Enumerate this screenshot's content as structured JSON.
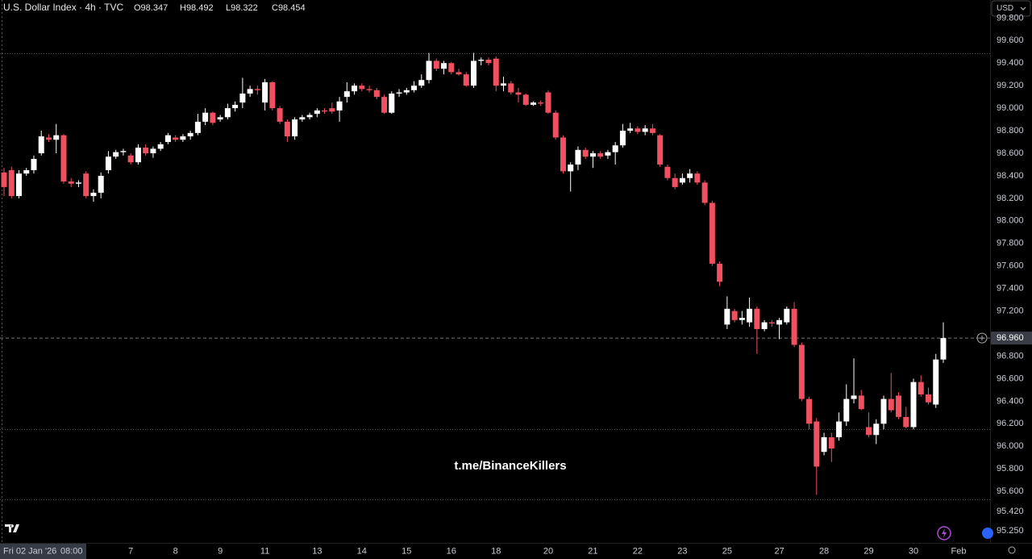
{
  "chart_data": {
    "type": "candlestick",
    "title": "U.S. Dollar Index · 4h · TVC",
    "ohlc_legend": [
      "O98.347",
      "H98.492",
      "L98.322",
      "C98.454"
    ],
    "currency": "USD",
    "watermark": "t.me/BinanceKillers",
    "crosshair_date": "Fri 02 Jan '26",
    "crosshair_time": "08:00",
    "x_axis_end_label": "Feb",
    "up_color": "#ffffff",
    "down_color": "#f0505f",
    "ylim": [
      95.15,
      99.96
    ],
    "yticks": [
      {
        "value": 99.8,
        "label": "99.800"
      },
      {
        "value": 99.6,
        "label": "99.600"
      },
      {
        "value": 99.4,
        "label": "99.400"
      },
      {
        "value": 99.2,
        "label": "99.200"
      },
      {
        "value": 99.0,
        "label": "99.000"
      },
      {
        "value": 98.8,
        "label": "98.800"
      },
      {
        "value": 98.6,
        "label": "98.600"
      },
      {
        "value": 98.4,
        "label": "98.400"
      },
      {
        "value": 98.2,
        "label": "98.200"
      },
      {
        "value": 98.0,
        "label": "98.000"
      },
      {
        "value": 97.8,
        "label": "97.800"
      },
      {
        "value": 97.6,
        "label": "97.600"
      },
      {
        "value": 97.4,
        "label": "97.400"
      },
      {
        "value": 97.2,
        "label": "97.200"
      },
      {
        "value": 96.8,
        "label": "96.800"
      },
      {
        "value": 96.6,
        "label": "96.600"
      },
      {
        "value": 96.4,
        "label": "96.400"
      },
      {
        "value": 96.2,
        "label": "96.200"
      },
      {
        "value": 96.0,
        "label": "96.000"
      },
      {
        "value": 95.8,
        "label": "95.800"
      },
      {
        "value": 95.6,
        "label": "95.600"
      },
      {
        "value": 95.42,
        "label": "95.420"
      },
      {
        "value": 95.25,
        "label": "95.250"
      }
    ],
    "last_price": {
      "value": 96.96,
      "label": "96.960"
    },
    "levels": [
      99.49,
      96.15,
      95.53
    ],
    "categories": [
      null,
      null,
      null,
      null,
      null,
      null,
      null,
      null,
      null,
      null,
      null,
      null,
      null,
      null,
      null,
      null,
      null,
      "7",
      null,
      null,
      null,
      null,
      null,
      "8",
      null,
      null,
      null,
      null,
      null,
      "9",
      null,
      null,
      null,
      null,
      null,
      "11",
      null,
      null,
      null,
      null,
      null,
      null,
      "13",
      null,
      null,
      null,
      null,
      null,
      "14",
      null,
      null,
      null,
      null,
      null,
      "15",
      null,
      null,
      null,
      null,
      null,
      "16",
      null,
      null,
      null,
      null,
      null,
      "18",
      null,
      null,
      null,
      null,
      null,
      null,
      "20",
      null,
      null,
      null,
      null,
      null,
      "21",
      null,
      null,
      null,
      null,
      null,
      "22",
      null,
      null,
      null,
      null,
      null,
      "23",
      null,
      null,
      null,
      null,
      null,
      "25",
      null,
      null,
      null,
      null,
      null,
      null,
      "27",
      null,
      null,
      null,
      null,
      null,
      "28",
      null,
      null,
      null,
      null,
      null,
      "29",
      null,
      null,
      null,
      null,
      null,
      "30",
      null,
      null,
      null,
      null
    ],
    "open": [
      98.43,
      98.45,
      98.22,
      98.42,
      98.45,
      98.6,
      98.74,
      98.72,
      98.76,
      98.35,
      98.33,
      98.42,
      98.22,
      98.25,
      98.45,
      98.57,
      98.61,
      98.58,
      98.52,
      98.65,
      98.6,
      98.64,
      98.7,
      98.74,
      98.72,
      98.75,
      98.78,
      98.88,
      98.96,
      98.9,
      98.92,
      99.0,
      99.05,
      99.13,
      99.17,
      99.05,
      99.23,
      99.0,
      98.88,
      98.75,
      98.9,
      98.92,
      98.95,
      98.98,
      99.0,
      98.98,
      99.1,
      99.15,
      99.2,
      99.17,
      99.16,
      99.1,
      98.96,
      99.13,
      99.14,
      99.16,
      99.2,
      99.25,
      99.42,
      99.35,
      99.4,
      99.32,
      99.3,
      99.2,
      99.42,
      99.43,
      99.44,
      99.2,
      99.22,
      99.14,
      99.12,
      99.03,
      99.05,
      99.14,
      98.96,
      98.74,
      98.44,
      98.5,
      98.63,
      98.57,
      98.6,
      98.58,
      98.61,
      98.67,
      98.8,
      98.82,
      98.79,
      98.82,
      98.76,
      98.48,
      98.38,
      98.34,
      98.38,
      98.42,
      98.34,
      98.16,
      97.62,
      97.08,
      97.2,
      97.12,
      97.1,
      97.22,
      97.04,
      97.1,
      97.08,
      97.1,
      97.22,
      96.9,
      96.42,
      96.22,
      95.95,
      96.08,
      96.08,
      96.22,
      96.42,
      96.45,
      96.17,
      96.1,
      96.2,
      96.42,
      96.45,
      96.26,
      96.17,
      96.57,
      96.46,
      96.37,
      96.77
    ],
    "high": [
      98.47,
      98.48,
      98.45,
      98.47,
      98.58,
      98.8,
      98.77,
      98.86,
      98.77,
      98.38,
      98.36,
      98.44,
      98.28,
      98.43,
      98.62,
      98.63,
      98.64,
      98.6,
      98.68,
      98.68,
      98.66,
      98.7,
      98.78,
      98.76,
      98.77,
      98.8,
      98.95,
      99.0,
      98.97,
      98.94,
      99.04,
      99.06,
      99.27,
      99.2,
      99.2,
      99.26,
      99.24,
      99.02,
      98.9,
      98.92,
      98.94,
      98.96,
      99.0,
      99.0,
      99.05,
      99.1,
      99.23,
      99.22,
      99.22,
      99.2,
      99.18,
      99.12,
      99.15,
      99.17,
      99.18,
      99.24,
      99.3,
      99.49,
      99.44,
      99.42,
      99.41,
      99.35,
      99.32,
      99.49,
      99.45,
      99.45,
      99.46,
      99.28,
      99.24,
      99.18,
      99.13,
      99.06,
      99.07,
      99.16,
      98.98,
      98.76,
      98.52,
      98.66,
      98.65,
      98.62,
      98.62,
      98.63,
      98.7,
      98.86,
      98.87,
      98.84,
      98.85,
      98.86,
      98.77,
      98.5,
      98.42,
      98.42,
      98.46,
      98.44,
      98.36,
      98.18,
      97.64,
      97.33,
      97.22,
      97.2,
      97.32,
      97.24,
      97.12,
      97.12,
      97.14,
      97.24,
      97.28,
      96.92,
      96.44,
      96.25,
      96.12,
      96.12,
      96.3,
      96.55,
      96.78,
      96.5,
      96.3,
      96.24,
      96.45,
      96.65,
      96.48,
      96.35,
      96.6,
      96.63,
      96.52,
      96.82,
      97.1
    ],
    "low": [
      98.22,
      98.2,
      98.2,
      98.4,
      98.42,
      98.58,
      98.7,
      98.6,
      98.33,
      98.3,
      98.3,
      98.2,
      98.17,
      98.2,
      98.42,
      98.55,
      98.58,
      98.5,
      98.5,
      98.58,
      98.56,
      98.62,
      98.68,
      98.7,
      98.7,
      98.72,
      98.76,
      98.85,
      98.85,
      98.88,
      98.9,
      98.97,
      99.0,
      99.1,
      99.12,
      98.98,
      98.98,
      98.86,
      98.7,
      98.72,
      98.88,
      98.9,
      98.92,
      98.95,
      98.95,
      98.88,
      99.05,
      99.12,
      99.15,
      99.14,
      99.08,
      98.95,
      98.95,
      99.1,
      99.12,
      99.14,
      99.18,
      99.22,
      99.33,
      99.3,
      99.3,
      99.29,
      99.19,
      99.18,
      99.38,
      99.38,
      99.15,
      99.15,
      99.12,
      99.05,
      99.02,
      99.02,
      99.02,
      98.95,
      98.72,
      98.42,
      98.26,
      98.45,
      98.55,
      98.47,
      98.55,
      98.55,
      98.5,
      98.65,
      98.78,
      98.77,
      98.76,
      98.76,
      98.48,
      98.36,
      98.28,
      98.32,
      98.34,
      98.32,
      98.14,
      97.6,
      97.42,
      97.04,
      97.1,
      97.08,
      97.06,
      96.82,
      97.02,
      97.06,
      96.95,
      97.08,
      96.88,
      96.4,
      96.15,
      95.57,
      95.92,
      95.86,
      96.05,
      96.18,
      96.38,
      96.32,
      96.08,
      96.02,
      96.15,
      96.3,
      96.24,
      96.16,
      96.15,
      96.44,
      96.37,
      96.34,
      96.74
    ],
    "close": [
      98.3,
      98.22,
      98.42,
      98.45,
      98.55,
      98.75,
      98.72,
      98.76,
      98.35,
      98.33,
      98.34,
      98.22,
      98.25,
      98.4,
      98.57,
      98.61,
      98.62,
      98.52,
      98.65,
      98.6,
      98.64,
      98.68,
      98.76,
      98.72,
      98.75,
      98.78,
      98.88,
      98.96,
      98.87,
      98.92,
      99.0,
      99.03,
      99.13,
      99.17,
      99.16,
      99.23,
      99.0,
      98.88,
      98.75,
      98.9,
      98.92,
      98.94,
      98.98,
      98.97,
      98.97,
      99.06,
      99.15,
      99.2,
      99.17,
      99.16,
      99.1,
      98.96,
      99.13,
      99.14,
      99.16,
      99.2,
      99.25,
      99.42,
      99.35,
      99.4,
      99.32,
      99.3,
      99.2,
      99.42,
      99.43,
      99.4,
      99.2,
      99.22,
      99.14,
      99.12,
      99.03,
      99.05,
      99.04,
      98.96,
      98.74,
      98.44,
      98.5,
      98.63,
      98.57,
      98.6,
      98.57,
      98.61,
      98.67,
      98.8,
      98.82,
      98.79,
      98.82,
      98.78,
      98.5,
      98.38,
      98.3,
      98.38,
      98.42,
      98.34,
      98.16,
      97.62,
      97.46,
      97.22,
      97.12,
      97.14,
      97.22,
      97.04,
      97.1,
      97.09,
      97.12,
      97.22,
      96.9,
      96.42,
      96.2,
      95.82,
      96.08,
      95.98,
      96.22,
      96.42,
      96.45,
      96.33,
      96.1,
      96.2,
      96.42,
      96.32,
      96.26,
      96.17,
      96.57,
      96.46,
      96.39,
      96.77,
      96.96
    ]
  }
}
